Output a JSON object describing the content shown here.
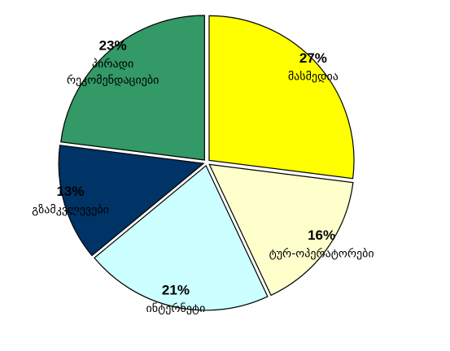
{
  "chart_data": {
    "type": "pie",
    "categories": [
      "მასმედია",
      "ტურ-ოპერატორები",
      "ინტერნეტი",
      "გზამკვლევები",
      "პირადი რეკომენდაციები"
    ],
    "values": [
      27,
      16,
      21,
      13,
      23
    ],
    "value_labels": [
      "27%",
      "16%",
      "21%",
      "13%",
      "23%"
    ],
    "colors": [
      "#ffff00",
      "#ffffcc",
      "#ccffff",
      "#003366",
      "#339966"
    ]
  }
}
